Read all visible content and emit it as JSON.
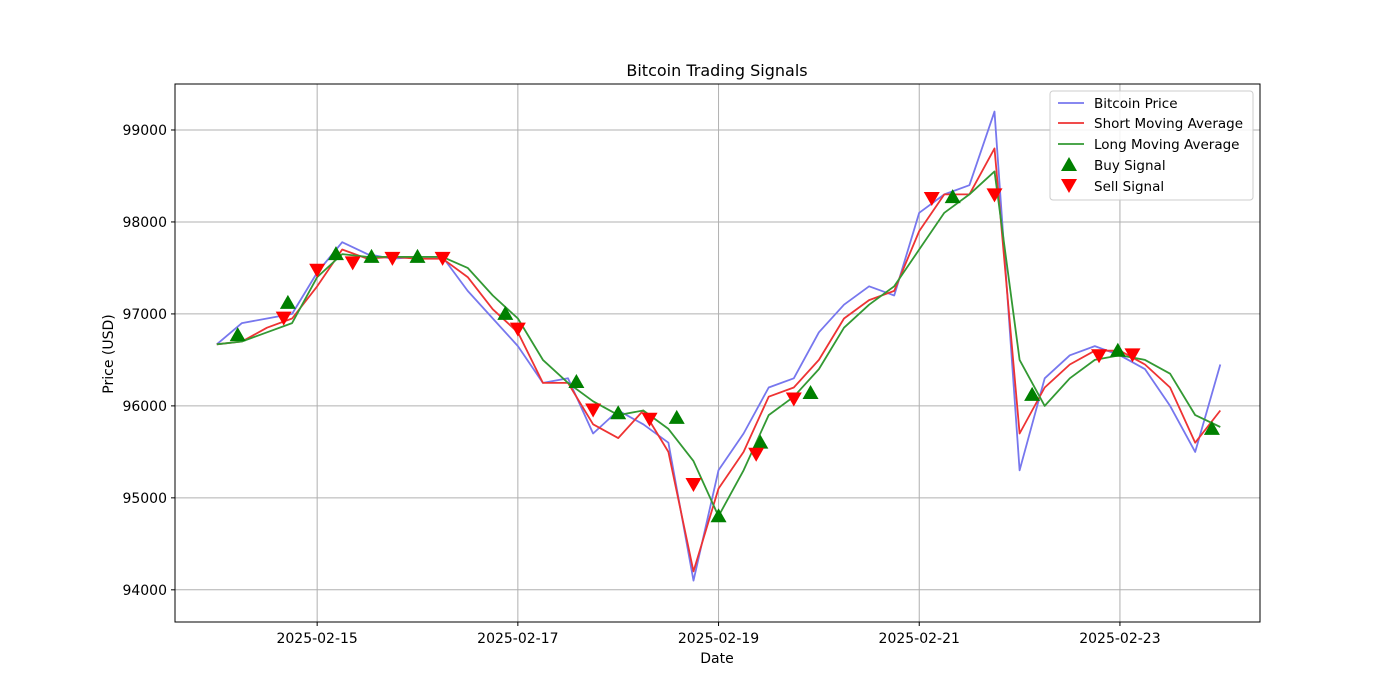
{
  "chart_data": {
    "type": "line",
    "title": "Bitcoin Trading Signals",
    "xlabel": "Date",
    "ylabel": "Price (USD)",
    "x_ticks": [
      "2025-02-15",
      "2025-02-17",
      "2025-02-19",
      "2025-02-21",
      "2025-02-23"
    ],
    "y_ticks": [
      94000,
      95000,
      96000,
      97000,
      98000,
      99000
    ],
    "xlim": [
      "2025-02-13 14:00",
      "2025-02-24 09:30"
    ],
    "ylim": [
      93650,
      99500
    ],
    "grid": true,
    "legend_position": "top-right",
    "colors": {
      "price": "#7777ee",
      "short_ma": "#ee3333",
      "long_ma": "#339933",
      "buy": "#008000",
      "sell": "#ff0000"
    },
    "series": [
      {
        "name": "Bitcoin Price",
        "kind": "line",
        "x": [
          "2025-02-14 00:00",
          "2025-02-14 06:00",
          "2025-02-14 12:00",
          "2025-02-14 18:00",
          "2025-02-15 00:00",
          "2025-02-15 06:00",
          "2025-02-15 12:00",
          "2025-02-15 18:00",
          "2025-02-16 00:00",
          "2025-02-16 06:00",
          "2025-02-16 12:00",
          "2025-02-16 18:00",
          "2025-02-17 00:00",
          "2025-02-17 06:00",
          "2025-02-17 12:00",
          "2025-02-17 18:00",
          "2025-02-18 00:00",
          "2025-02-18 06:00",
          "2025-02-18 12:00",
          "2025-02-18 18:00",
          "2025-02-19 00:00",
          "2025-02-19 06:00",
          "2025-02-19 12:00",
          "2025-02-19 18:00",
          "2025-02-20 00:00",
          "2025-02-20 06:00",
          "2025-02-20 12:00",
          "2025-02-20 18:00",
          "2025-02-21 00:00",
          "2025-02-21 06:00",
          "2025-02-21 12:00",
          "2025-02-21 18:00",
          "2025-02-22 00:00",
          "2025-02-22 06:00",
          "2025-02-22 12:00",
          "2025-02-22 18:00",
          "2025-02-23 00:00",
          "2025-02-23 06:00",
          "2025-02-23 12:00",
          "2025-02-23 18:00",
          "2025-02-24 00:00"
        ],
        "y": [
          96670,
          96900,
          96950,
          97000,
          97450,
          97780,
          97650,
          97600,
          97620,
          97620,
          97250,
          96950,
          96650,
          96250,
          96300,
          95700,
          95950,
          95800,
          95600,
          94100,
          95300,
          95700,
          96200,
          96300,
          96800,
          97100,
          97300,
          97200,
          98100,
          98300,
          98400,
          99200,
          95300,
          96300,
          96550,
          96650,
          96550,
          96400,
          96000,
          95500,
          96450
        ]
      },
      {
        "name": "Short Moving Average",
        "kind": "line",
        "x": [
          "2025-02-14 00:00",
          "2025-02-14 06:00",
          "2025-02-14 12:00",
          "2025-02-14 18:00",
          "2025-02-15 00:00",
          "2025-02-15 06:00",
          "2025-02-15 12:00",
          "2025-02-15 18:00",
          "2025-02-16 00:00",
          "2025-02-16 06:00",
          "2025-02-16 12:00",
          "2025-02-16 18:00",
          "2025-02-17 00:00",
          "2025-02-17 06:00",
          "2025-02-17 12:00",
          "2025-02-17 18:00",
          "2025-02-18 00:00",
          "2025-02-18 06:00",
          "2025-02-18 12:00",
          "2025-02-18 18:00",
          "2025-02-19 00:00",
          "2025-02-19 06:00",
          "2025-02-19 12:00",
          "2025-02-19 18:00",
          "2025-02-20 00:00",
          "2025-02-20 06:00",
          "2025-02-20 12:00",
          "2025-02-20 18:00",
          "2025-02-21 00:00",
          "2025-02-21 06:00",
          "2025-02-21 12:00",
          "2025-02-21 18:00",
          "2025-02-22 00:00",
          "2025-02-22 06:00",
          "2025-02-22 12:00",
          "2025-02-22 18:00",
          "2025-02-23 00:00",
          "2025-02-23 06:00",
          "2025-02-23 12:00",
          "2025-02-23 18:00",
          "2025-02-24 00:00"
        ],
        "y": [
          96670,
          96700,
          96850,
          96950,
          97300,
          97700,
          97600,
          97620,
          97600,
          97600,
          97400,
          97050,
          96800,
          96250,
          96250,
          95800,
          95650,
          95950,
          95500,
          94200,
          95100,
          95500,
          96100,
          96200,
          96500,
          96950,
          97150,
          97250,
          97900,
          98300,
          98300,
          98800,
          95700,
          96200,
          96450,
          96600,
          96600,
          96450,
          96200,
          95600,
          95950
        ]
      },
      {
        "name": "Long Moving Average",
        "kind": "line",
        "x": [
          "2025-02-14 00:00",
          "2025-02-14 06:00",
          "2025-02-14 12:00",
          "2025-02-14 18:00",
          "2025-02-15 00:00",
          "2025-02-15 06:00",
          "2025-02-15 12:00",
          "2025-02-15 18:00",
          "2025-02-16 00:00",
          "2025-02-16 06:00",
          "2025-02-16 12:00",
          "2025-02-16 18:00",
          "2025-02-17 00:00",
          "2025-02-17 06:00",
          "2025-02-17 12:00",
          "2025-02-17 18:00",
          "2025-02-18 00:00",
          "2025-02-18 06:00",
          "2025-02-18 12:00",
          "2025-02-18 18:00",
          "2025-02-19 00:00",
          "2025-02-19 06:00",
          "2025-02-19 12:00",
          "2025-02-19 18:00",
          "2025-02-20 00:00",
          "2025-02-20 06:00",
          "2025-02-20 12:00",
          "2025-02-20 18:00",
          "2025-02-21 00:00",
          "2025-02-21 06:00",
          "2025-02-21 12:00",
          "2025-02-21 18:00",
          "2025-02-22 00:00",
          "2025-02-22 06:00",
          "2025-02-22 12:00",
          "2025-02-22 18:00",
          "2025-02-23 00:00",
          "2025-02-23 06:00",
          "2025-02-23 12:00",
          "2025-02-23 18:00",
          "2025-02-24 00:00"
        ],
        "y": [
          96670,
          96700,
          96800,
          96900,
          97400,
          97650,
          97620,
          97620,
          97620,
          97620,
          97500,
          97200,
          96950,
          96500,
          96250,
          96050,
          95900,
          95950,
          95750,
          95400,
          94800,
          95300,
          95900,
          96100,
          96400,
          96850,
          97100,
          97300,
          97700,
          98100,
          98300,
          98550,
          96500,
          96000,
          96300,
          96500,
          96550,
          96500,
          96350,
          95900,
          95770
        ]
      }
    ],
    "signals": {
      "buy": {
        "name": "Buy Signal",
        "x": [
          "2025-02-14 05:00",
          "2025-02-14 17:00",
          "2025-02-15 04:30",
          "2025-02-15 13:00",
          "2025-02-16 00:00",
          "2025-02-16 21:00",
          "2025-02-17 14:00",
          "2025-02-18 00:00",
          "2025-02-18 14:00",
          "2025-02-19 00:00",
          "2025-02-19 10:00",
          "2025-02-19 22:00",
          "2025-02-21 08:00",
          "2025-02-22 03:00",
          "2025-02-22 23:30",
          "2025-02-23 22:00"
        ],
        "y": [
          96770,
          97120,
          97650,
          97620,
          97620,
          97000,
          96260,
          95920,
          95870,
          94800,
          95600,
          96140,
          98270,
          96120,
          96600,
          95750
        ]
      },
      "sell": {
        "name": "Sell Signal",
        "x": [
          "2025-02-14 16:00",
          "2025-02-15 00:00",
          "2025-02-15 08:30",
          "2025-02-15 18:00",
          "2025-02-16 06:00",
          "2025-02-17 00:00",
          "2025-02-17 18:00",
          "2025-02-18 07:30",
          "2025-02-18 18:00",
          "2025-02-19 09:00",
          "2025-02-19 18:00",
          "2025-02-21 03:00",
          "2025-02-21 18:00",
          "2025-02-22 19:00",
          "2025-02-23 03:00"
        ],
        "y": [
          96960,
          97480,
          97560,
          97610,
          97610,
          96840,
          95960,
          95860,
          95150,
          95480,
          96080,
          98260,
          98300,
          96550,
          96560
        ]
      }
    }
  }
}
